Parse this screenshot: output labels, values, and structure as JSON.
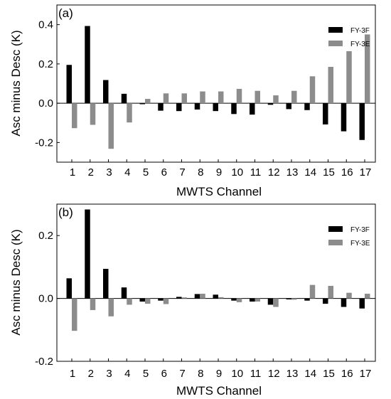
{
  "chart_data": [
    {
      "type": "bar",
      "panel_label": "(a)",
      "xlabel": "MWTS Channel",
      "ylabel": "Asc minus Desc (K)",
      "categories": [
        "1",
        "2",
        "3",
        "4",
        "5",
        "6",
        "7",
        "8",
        "9",
        "10",
        "11",
        "12",
        "13",
        "14",
        "15",
        "16",
        "17"
      ],
      "ylim": [
        -0.3,
        0.5
      ],
      "yticks": [
        "-0.2",
        "0.0",
        "0.2",
        "0.4"
      ],
      "yticks_values": [
        -0.2,
        0.0,
        0.2,
        0.4
      ],
      "legend_position": "top-right",
      "series": [
        {
          "name": "FY-3F",
          "color": "#000000",
          "values": [
            0.195,
            0.393,
            0.118,
            0.048,
            -0.005,
            -0.038,
            -0.04,
            -0.032,
            -0.04,
            -0.055,
            -0.058,
            -0.008,
            -0.03,
            -0.035,
            -0.108,
            -0.143,
            -0.187
          ]
        },
        {
          "name": "FY-3E",
          "color": "#8c8c8c",
          "values": [
            -0.127,
            -0.11,
            -0.232,
            -0.098,
            0.022,
            0.05,
            0.05,
            0.06,
            0.06,
            0.073,
            0.063,
            0.04,
            0.063,
            0.137,
            0.185,
            0.265,
            0.35
          ]
        }
      ]
    },
    {
      "type": "bar",
      "panel_label": "(b)",
      "xlabel": "MWTS Channel",
      "ylabel": "Asc minus Desc (K)",
      "categories": [
        "1",
        "2",
        "3",
        "4",
        "5",
        "6",
        "7",
        "8",
        "9",
        "10",
        "11",
        "12",
        "13",
        "14",
        "15",
        "16",
        "17"
      ],
      "ylim": [
        -0.2,
        0.3
      ],
      "yticks": [
        "-0.2",
        "0.0",
        "0.2"
      ],
      "yticks_values": [
        -0.2,
        0.0,
        0.2
      ],
      "legend_position": "top-right",
      "series": [
        {
          "name": "FY-3F",
          "color": "#000000",
          "values": [
            0.064,
            0.283,
            0.094,
            0.035,
            -0.01,
            -0.007,
            0.005,
            0.014,
            0.012,
            -0.007,
            -0.01,
            -0.02,
            -0.003,
            -0.007,
            -0.017,
            -0.027,
            -0.032
          ]
        },
        {
          "name": "FY-3E",
          "color": "#8c8c8c",
          "values": [
            -0.103,
            -0.037,
            -0.057,
            -0.02,
            -0.017,
            -0.018,
            0.003,
            0.015,
            0.004,
            -0.012,
            -0.01,
            -0.027,
            -0.004,
            0.043,
            0.04,
            0.018,
            0.015
          ]
        }
      ]
    }
  ]
}
